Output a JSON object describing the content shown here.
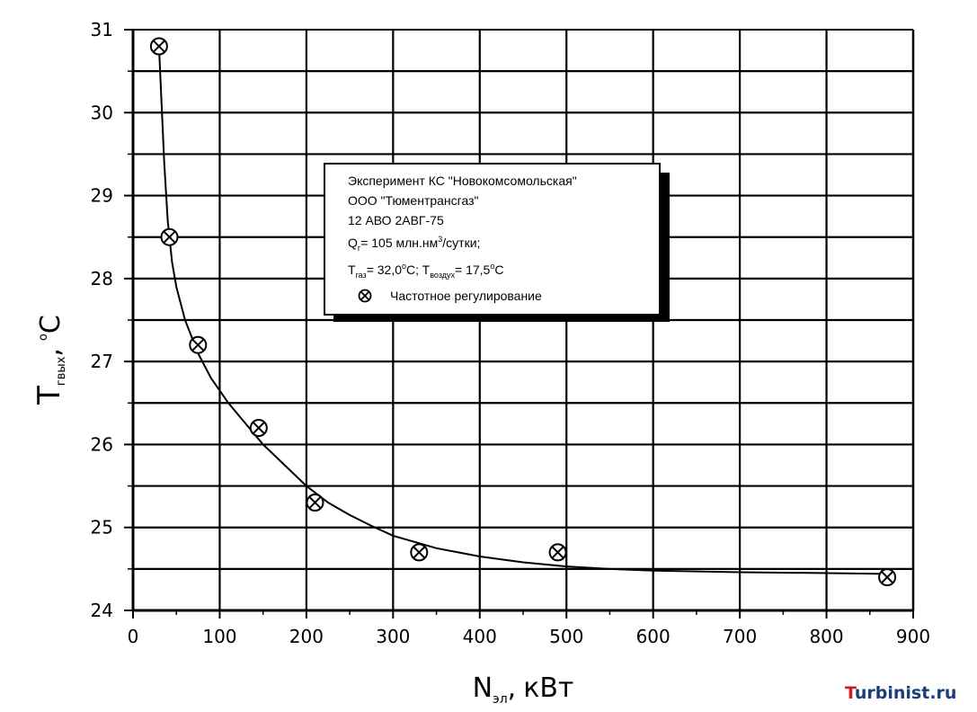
{
  "chart_data": {
    "type": "scatter",
    "title": "",
    "xlabel": {
      "main": "N",
      "sub": "эл",
      "sep": ",",
      "unit": "кВт"
    },
    "ylabel": {
      "main": "T",
      "sub": "гвых",
      "sep": ",",
      "unit_sup": "o",
      "unit": "C"
    },
    "xlim": [
      0,
      900
    ],
    "ylim": [
      24,
      31
    ],
    "xticks": [
      "0",
      "100",
      "200",
      "300",
      "400",
      "500",
      "600",
      "700",
      "800",
      "900"
    ],
    "yticks": [
      "24",
      "25",
      "26",
      "27",
      "28",
      "29",
      "30",
      "31"
    ],
    "grid": true,
    "series": [
      {
        "name": "Частотное регулирование",
        "marker": "circle-cross",
        "points": [
          {
            "x": 30,
            "y": 30.8
          },
          {
            "x": 42,
            "y": 28.5
          },
          {
            "x": 75,
            "y": 27.2
          },
          {
            "x": 145,
            "y": 26.2
          },
          {
            "x": 210,
            "y": 25.3
          },
          {
            "x": 330,
            "y": 24.7
          },
          {
            "x": 490,
            "y": 24.7
          },
          {
            "x": 870,
            "y": 24.4
          }
        ]
      }
    ],
    "fit_curve": {
      "points": [
        [
          30,
          30.8
        ],
        [
          33,
          30.1
        ],
        [
          36,
          29.4
        ],
        [
          40,
          28.7
        ],
        [
          45,
          28.2
        ],
        [
          50,
          27.9
        ],
        [
          60,
          27.5
        ],
        [
          75,
          27.1
        ],
        [
          90,
          26.8
        ],
        [
          110,
          26.5
        ],
        [
          130,
          26.25
        ],
        [
          150,
          26.0
        ],
        [
          175,
          25.75
        ],
        [
          200,
          25.5
        ],
        [
          225,
          25.3
        ],
        [
          250,
          25.15
        ],
        [
          275,
          25.02
        ],
        [
          300,
          24.9
        ],
        [
          350,
          24.75
        ],
        [
          400,
          24.65
        ],
        [
          450,
          24.58
        ],
        [
          500,
          24.53
        ],
        [
          550,
          24.5
        ],
        [
          600,
          24.48
        ],
        [
          700,
          24.46
        ],
        [
          800,
          24.45
        ],
        [
          870,
          24.44
        ]
      ]
    },
    "legend": {
      "placement": "top-center",
      "lines": [
        "Эксперимент КС \"Новокомсомольская\"",
        "ООО \"Тюментрансгаз\"",
        "12 АВО 2АВГ-75"
      ],
      "q_line": {
        "main": "Q",
        "sub": "г",
        "rest_before_sup": "= 105 млн.нм",
        "sup": "3",
        "rest_after_sup": "/сутки;"
      },
      "t_line": {
        "t1": "T",
        "t1_sub": "газ",
        "t1_val": "= 32,0",
        "t1_sup": "o",
        "t1_unit": "C; ",
        "t2": "T",
        "t2_sub": "воздух",
        "t2_val": "= 17,5",
        "t2_sup": "o",
        "t2_unit": "C"
      },
      "series_label": "Частотное регулирование"
    }
  },
  "watermark": {
    "first": "T",
    "rest": "urbinist.ru",
    "color": "#1a3e7a",
    "accent": "#d21a1a"
  }
}
